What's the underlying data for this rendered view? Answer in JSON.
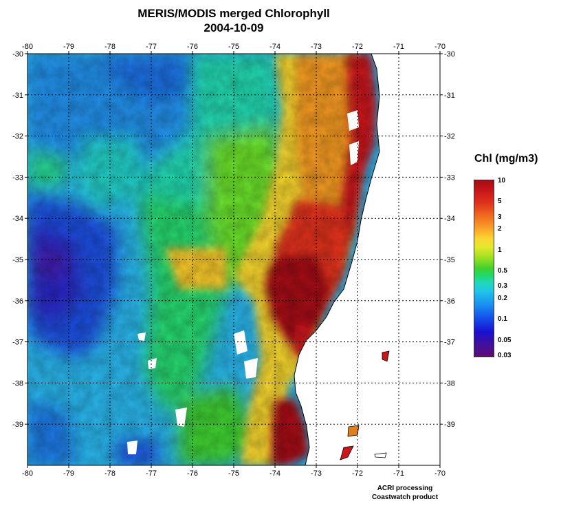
{
  "title": "MERIS/MODIS merged Chlorophyll",
  "date": "2004-10-09",
  "axes": {
    "lon_ticks": [
      "-80",
      "-79",
      "-78",
      "-77",
      "-76",
      "-75",
      "-74",
      "-73",
      "-72",
      "-71",
      "-70"
    ],
    "lat_ticks": [
      "-30",
      "-31",
      "-32",
      "-33",
      "-34",
      "-35",
      "-36",
      "-37",
      "-38",
      "-39"
    ],
    "lon_range": [
      -80,
      -70
    ],
    "lat_range": [
      -40,
      -30
    ],
    "grid": true
  },
  "colorbar": {
    "title": "Chl (mg/m3)",
    "labels": [
      "10",
      "5",
      "3",
      "2",
      "1",
      "0.5",
      "0.3",
      "0.2",
      "0.1",
      "0.05",
      "0.03"
    ],
    "scale": "log",
    "colors": {
      "low": "#5c0e7a",
      "mid": "#40d02e",
      "high": "#a50d12",
      "land": "#ffffff"
    }
  },
  "credits": {
    "line1": "ACRI processing",
    "line2": "Coastwatch product"
  }
}
